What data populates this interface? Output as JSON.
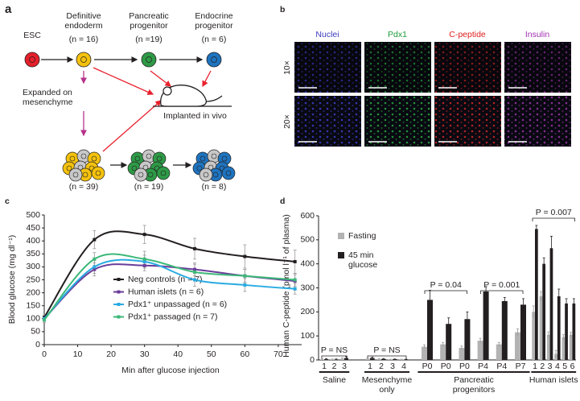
{
  "panel_a": {
    "panel_label": "a",
    "stages": [
      {
        "label": "ESC"
      },
      {
        "label": "Definitive endoderm",
        "n": "(n = 16)"
      },
      {
        "label": "Pancreatic progenitor",
        "n": "(n =19)"
      },
      {
        "label": "Endocrine progenitor",
        "n": "(n = 6)"
      }
    ],
    "expansion_label": "Expanded on mesenchyme",
    "implant_label": "Implanted in vivo",
    "clusters": [
      "(n = 39)",
      "(n = 19)",
      "(n = 8)"
    ]
  },
  "panel_b": {
    "panel_label": "b",
    "columns": [
      "Nuclei",
      "Pdx1",
      "C-peptide",
      "Insulin"
    ],
    "rows": [
      "10×",
      "20×"
    ]
  },
  "chart_data": [
    {
      "type": "line",
      "panel_label": "c",
      "x_label": "Min after glucose injection",
      "y_label": "Blood glucose (mg dl⁻¹)",
      "x": [
        0,
        15,
        30,
        45,
        60,
        75
      ],
      "xlim": [
        0,
        77
      ],
      "ylim": [
        0,
        500
      ],
      "xticks": [
        0,
        10,
        20,
        30,
        40,
        50,
        60,
        70
      ],
      "yticks": [
        0,
        50,
        100,
        150,
        200,
        250,
        300,
        350,
        400,
        450,
        500
      ],
      "series": [
        {
          "name": "Neg controls (n = 7)",
          "color": "#231f20",
          "values": [
            105,
            405,
            425,
            370,
            340,
            320
          ],
          "errors": [
            10,
            35,
            35,
            40,
            45,
            45
          ]
        },
        {
          "name": "Human islets (n = 6)",
          "color": "#6a3d9a",
          "values": [
            100,
            290,
            305,
            290,
            265,
            245
          ],
          "errors": [
            10,
            25,
            20,
            25,
            25,
            25
          ]
        },
        {
          "name": "Pdx1⁺ unpassaged (n = 6)",
          "color": "#29abe2",
          "values": [
            100,
            300,
            320,
            250,
            230,
            215
          ],
          "errors": [
            10,
            25,
            25,
            25,
            25,
            20
          ]
        },
        {
          "name": "Pdx1⁺ passaged (n = 7)",
          "color": "#3cb878",
          "values": [
            95,
            330,
            330,
            280,
            265,
            250
          ],
          "errors": [
            10,
            25,
            30,
            30,
            25,
            25
          ]
        }
      ]
    },
    {
      "type": "bar",
      "panel_label": "d",
      "y_label": "Human C-peptide (pmol l⁻¹ of plasma)",
      "categories": [
        "1",
        "2",
        "3",
        "1",
        "2",
        "3",
        "4",
        "P0",
        "P0",
        "P0",
        "P4",
        "P4",
        "P7",
        "1",
        "2",
        "3",
        "4",
        "5",
        "6"
      ],
      "groups": [
        "Saline",
        "Mesenchyme only",
        "Pancreatic progenitors",
        "Human islets"
      ],
      "ylim": [
        0,
        600
      ],
      "yticks": [
        0,
        100,
        200,
        300,
        400,
        500,
        600
      ],
      "series": [
        {
          "name": "Fasting",
          "color": "#b3b3b3",
          "values": [
            2,
            2,
            5,
            5,
            3,
            2,
            2,
            55,
            65,
            50,
            80,
            65,
            115,
            200,
            265,
            105,
            25,
            95,
            105
          ],
          "errors": [
            2,
            2,
            3,
            3,
            2,
            1,
            1,
            8,
            8,
            8,
            10,
            8,
            15,
            25,
            20,
            12,
            15,
            10,
            10
          ]
        },
        {
          "name": "45 min glucose",
          "color": "#231f20",
          "values": [
            3,
            2,
            8,
            8,
            4,
            3,
            2,
            250,
            150,
            170,
            285,
            245,
            230,
            545,
            400,
            465,
            265,
            235,
            235
          ],
          "errors": [
            2,
            2,
            6,
            4,
            2,
            1,
            1,
            40,
            25,
            30,
            20,
            15,
            25,
            15,
            25,
            50,
            30,
            20,
            20
          ]
        }
      ],
      "annotations": [
        "P = NS",
        "P = NS",
        "P = 0.04",
        "P = 0.001",
        "P = 0.007"
      ]
    }
  ]
}
